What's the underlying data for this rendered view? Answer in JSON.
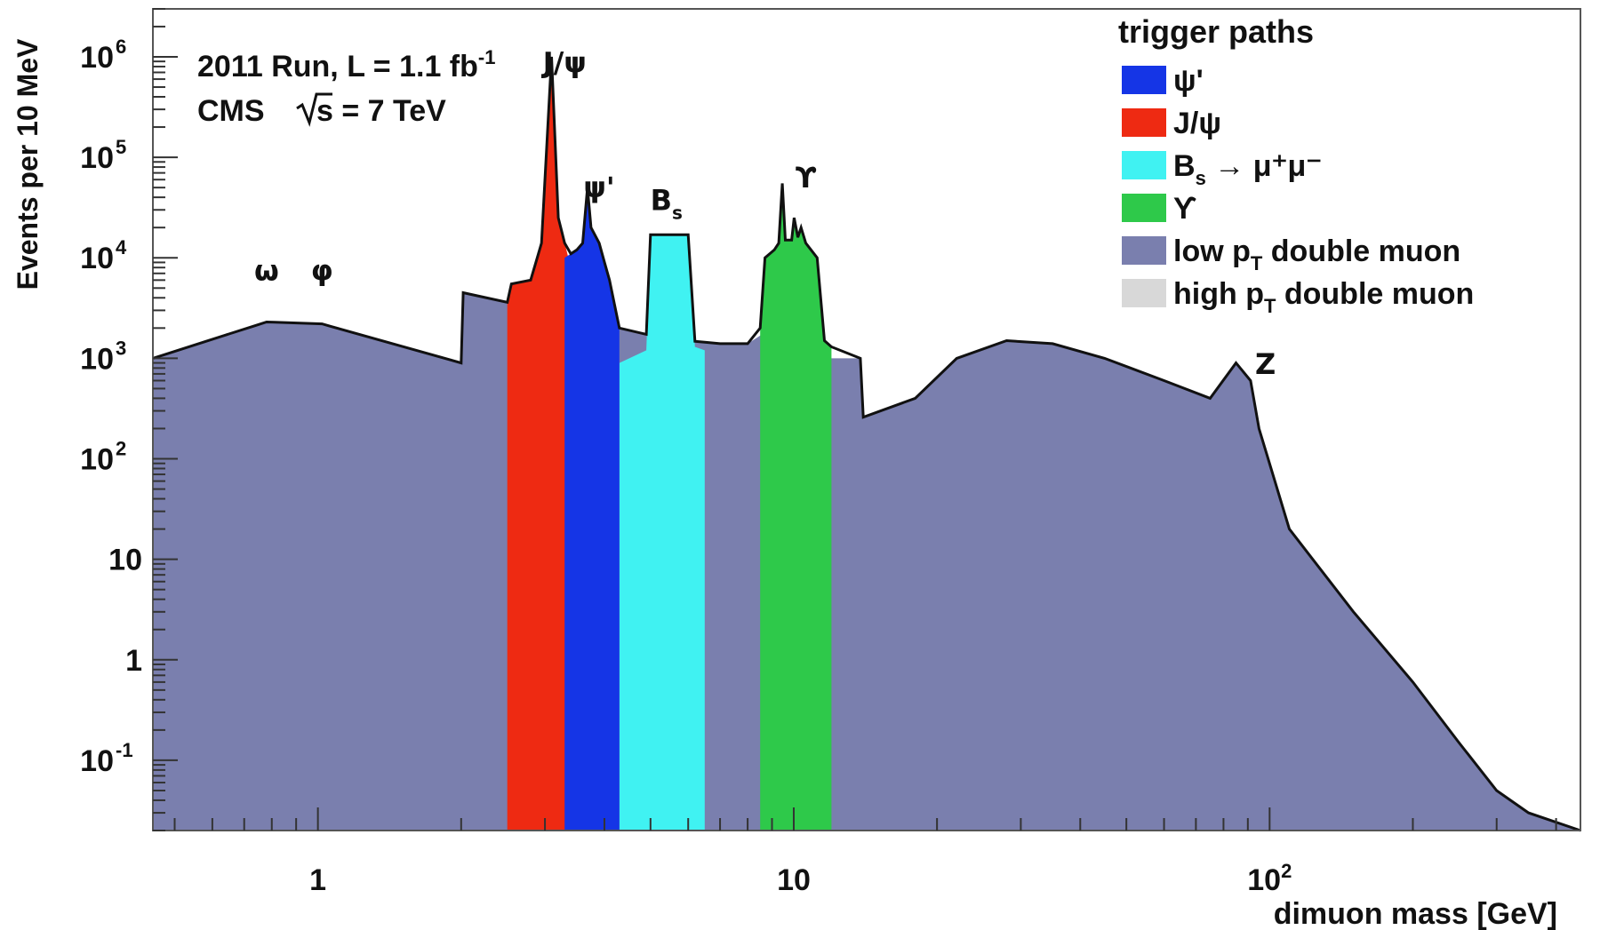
{
  "chart_data": {
    "type": "area",
    "x_scale": "log",
    "y_scale": "log",
    "xlim": [
      0.45,
      450
    ],
    "ylim": [
      0.02,
      3000000
    ],
    "xlabel": "dimuon mass [GeV]",
    "ylabel": "Events per 10 MeV",
    "x_ticks": [
      {
        "value": 1,
        "label": "1"
      },
      {
        "value": 10,
        "label": "10"
      },
      {
        "value": 100,
        "label": "10",
        "sup": "2"
      }
    ],
    "y_ticks": [
      {
        "value": 0.1,
        "label": "10",
        "sup": "-1"
      },
      {
        "value": 1,
        "label": "1",
        "sup": ""
      },
      {
        "value": 10,
        "label": "10",
        "sup": ""
      },
      {
        "value": 100,
        "label": "10",
        "sup": "2"
      },
      {
        "value": 1000,
        "label": "10",
        "sup": "3"
      },
      {
        "value": 10000,
        "label": "10",
        "sup": "4"
      },
      {
        "value": 100000,
        "label": "10",
        "sup": "5"
      },
      {
        "value": 1000000,
        "label": "10",
        "sup": "6"
      }
    ],
    "info": {
      "line1": "2011 Run, L = 1.1 fb",
      "line1_sup": "-1",
      "line2_a": "CMS",
      "line2_b": "s = 7 TeV"
    },
    "legend": {
      "title": "trigger paths",
      "position": "top-right",
      "entries": [
        {
          "label": "ψ'",
          "color": "#1535e6"
        },
        {
          "label": "J/ψ",
          "color": "#ee2a12"
        },
        {
          "label": "B",
          "sub": "s",
          "suffix": " → μ⁺μ⁻",
          "color": "#40f2f2"
        },
        {
          "label": "ϒ",
          "color": "#2ec94a"
        },
        {
          "label": "low p",
          "sub": "T",
          "suffix": " double muon",
          "color": "#7a7fae"
        },
        {
          "label": "high p",
          "sub": "T",
          "suffix": " double muon",
          "color": "#d8d8d8"
        }
      ]
    },
    "annotations": [
      {
        "text": "ω",
        "x": 0.78,
        "y": 6000
      },
      {
        "text": "φ",
        "x": 1.02,
        "y": 6000
      },
      {
        "text": "J/ψ",
        "x": 3.3,
        "y": 700000
      },
      {
        "text": "ψ'",
        "x": 3.9,
        "y": 40000
      },
      {
        "text": "B",
        "sub": "s",
        "x": 5.4,
        "y": 30000
      },
      {
        "text": "ϒ",
        "x": 10.6,
        "y": 50000
      },
      {
        "text": "Z",
        "x": 98,
        "y": 700
      }
    ],
    "series": [
      {
        "name": "high p_T double muon",
        "color": "#d8d8d8",
        "points": [
          [
            0.45,
            1000
          ],
          [
            0.65,
            900
          ],
          [
            0.74,
            1050
          ],
          [
            0.78,
            2300
          ],
          [
            0.81,
            1000
          ],
          [
            0.96,
            900
          ],
          [
            1.02,
            2200
          ],
          [
            1.06,
            900
          ],
          [
            1.5,
            880
          ],
          [
            2.0,
            900
          ],
          [
            2.1,
            800
          ],
          [
            2.9,
            700
          ],
          [
            3.097,
            16000
          ],
          [
            3.25,
            600
          ],
          [
            3.6,
            800
          ],
          [
            3.686,
            4500
          ],
          [
            3.8,
            600
          ],
          [
            4.0,
            400
          ],
          [
            5,
            320
          ],
          [
            6,
            300
          ],
          [
            7,
            300
          ],
          [
            8,
            320
          ],
          [
            9.0,
            350
          ],
          [
            9.46,
            2500
          ],
          [
            9.7,
            800
          ],
          [
            10.02,
            1000
          ],
          [
            10.2,
            500
          ],
          [
            10.36,
            600
          ],
          [
            10.6,
            400
          ],
          [
            12,
            300
          ],
          [
            14,
            260
          ],
          [
            18,
            400
          ],
          [
            22,
            1000
          ],
          [
            28,
            1500
          ],
          [
            35,
            1400
          ],
          [
            45,
            1000
          ],
          [
            60,
            600
          ],
          [
            75,
            400
          ],
          [
            85,
            900
          ],
          [
            91.2,
            600
          ],
          [
            95,
            200
          ],
          [
            110,
            20
          ],
          [
            150,
            3
          ],
          [
            200,
            0.6
          ],
          [
            250,
            0.15
          ],
          [
            300,
            0.05
          ],
          [
            350,
            0.03
          ],
          [
            450,
            0.02
          ]
        ]
      },
      {
        "name": "low p_T double muon",
        "color": "#7a7fae",
        "points": [
          [
            0.45,
            1000
          ],
          [
            0.78,
            2300
          ],
          [
            1.02,
            2200
          ],
          [
            2.0,
            900
          ],
          [
            2.02,
            4500
          ],
          [
            2.5,
            3600
          ],
          [
            2.9,
            4500
          ],
          [
            3.097,
            120000
          ],
          [
            3.3,
            3500
          ],
          [
            3.6,
            2800
          ],
          [
            3.686,
            6000
          ],
          [
            3.8,
            2000
          ],
          [
            4.2,
            2000
          ],
          [
            5,
            1700
          ],
          [
            6,
            1500
          ],
          [
            7,
            1400
          ],
          [
            8,
            1400
          ],
          [
            9.0,
            2000
          ],
          [
            9.46,
            5000
          ],
          [
            9.7,
            1600
          ],
          [
            10.02,
            3000
          ],
          [
            10.36,
            1500
          ],
          [
            10.6,
            1200
          ],
          [
            12,
            1000
          ],
          [
            13.8,
            1000
          ],
          [
            14,
            260
          ],
          [
            18,
            400
          ],
          [
            22,
            1000
          ],
          [
            28,
            1500
          ],
          [
            35,
            1400
          ],
          [
            45,
            1000
          ],
          [
            60,
            600
          ],
          [
            75,
            400
          ],
          [
            85,
            900
          ],
          [
            91.2,
            600
          ],
          [
            95,
            200
          ],
          [
            110,
            20
          ],
          [
            150,
            3
          ],
          [
            200,
            0.6
          ],
          [
            250,
            0.15
          ],
          [
            300,
            0.05
          ],
          [
            350,
            0.03
          ],
          [
            450,
            0.02
          ]
        ]
      },
      {
        "name": "Bs → μ+μ-",
        "color": "#40f2f2",
        "points": [
          [
            4.3,
            900
          ],
          [
            4.9,
            1200
          ],
          [
            5.0,
            17000
          ],
          [
            6.0,
            17000
          ],
          [
            6.2,
            1300
          ],
          [
            6.5,
            1200
          ]
        ]
      },
      {
        "name": "J/ψ",
        "color": "#ee2a12",
        "points": [
          [
            2.5,
            3600
          ],
          [
            2.55,
            5500
          ],
          [
            2.8,
            6000
          ],
          [
            2.95,
            14000
          ],
          [
            3.097,
            1000000
          ],
          [
            3.2,
            25000
          ],
          [
            3.4,
            8000
          ],
          [
            3.6,
            7000
          ],
          [
            3.686,
            30000
          ],
          [
            3.8,
            6000
          ],
          [
            4.0,
            900
          ]
        ]
      },
      {
        "name": "ψ'",
        "color": "#1535e6",
        "points": [
          [
            3.3,
            10000
          ],
          [
            3.5,
            12000
          ],
          [
            3.6,
            14000
          ],
          [
            3.686,
            50000
          ],
          [
            3.75,
            20000
          ],
          [
            3.9,
            14000
          ],
          [
            4.1,
            6000
          ],
          [
            4.3,
            2000
          ]
        ]
      },
      {
        "name": "ϒ",
        "color": "#2ec94a",
        "points": [
          [
            8.5,
            2000
          ],
          [
            8.7,
            10000
          ],
          [
            9.1,
            12000
          ],
          [
            9.3,
            14000
          ],
          [
            9.46,
            55000
          ],
          [
            9.6,
            15000
          ],
          [
            9.9,
            15000
          ],
          [
            10.02,
            25000
          ],
          [
            10.2,
            16000
          ],
          [
            10.36,
            20000
          ],
          [
            10.6,
            14000
          ],
          [
            11.2,
            10000
          ],
          [
            11.6,
            1500
          ],
          [
            12,
            1300
          ]
        ]
      }
    ]
  }
}
